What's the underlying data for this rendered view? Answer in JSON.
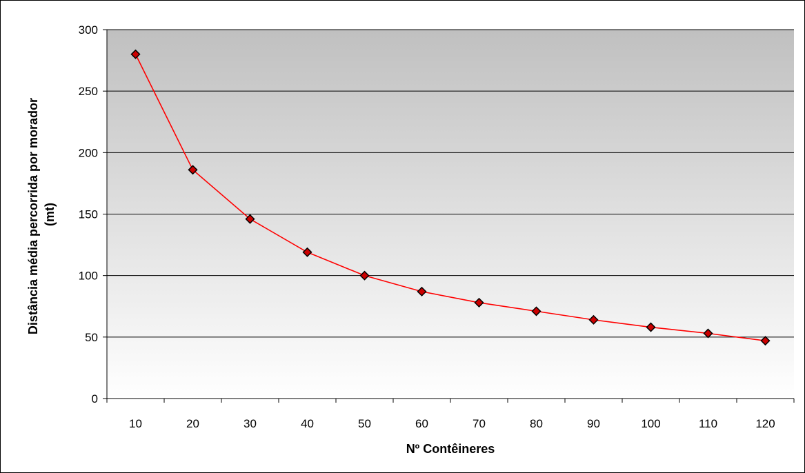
{
  "chart_data": {
    "type": "line",
    "title": "",
    "xlabel": "Nº Contêineres",
    "ylabel_lines": [
      "Distância média percorrida por morador",
      "(mt)"
    ],
    "categories": [
      "10",
      "20",
      "30",
      "40",
      "50",
      "60",
      "70",
      "80",
      "90",
      "100",
      "110",
      "120"
    ],
    "series": [
      {
        "values": [
          280,
          186,
          146,
          119,
          100,
          87,
          78,
          71,
          64,
          58,
          53,
          47
        ]
      }
    ],
    "ylim": [
      0,
      300
    ],
    "yticks": [
      0,
      50,
      100,
      150,
      200,
      250,
      300
    ],
    "grid": true,
    "legend": "none",
    "colors": {
      "line": "#ff0000",
      "marker_fill": "#cc0000",
      "marker_edge": "#000000",
      "plot_bg_top": "#c0c0c0",
      "plot_bg_bottom": "#ffffff",
      "gridline": "#000000"
    }
  }
}
